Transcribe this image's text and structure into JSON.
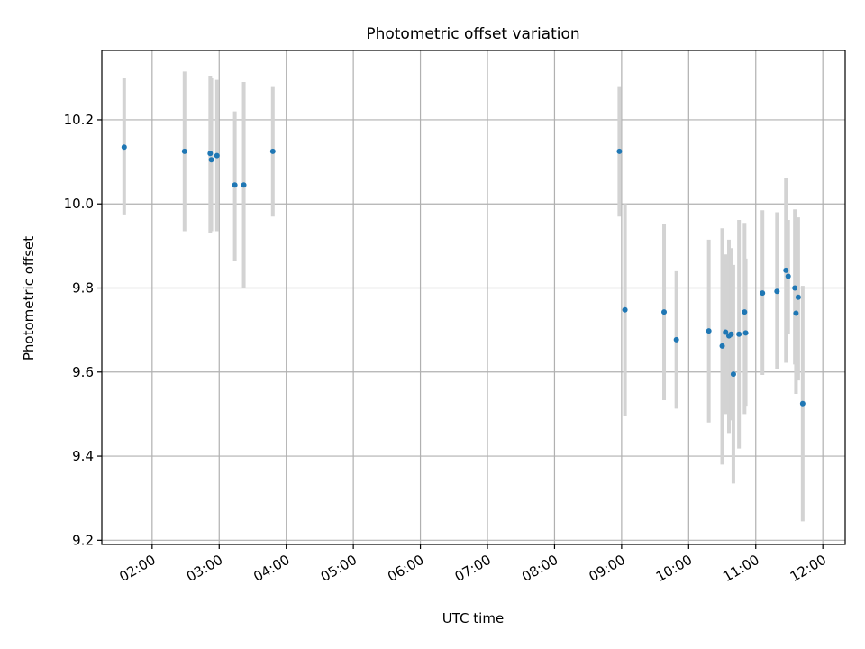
{
  "chart_data": {
    "type": "scatter",
    "title": "Photometric offset variation",
    "xlabel": "UTC time",
    "ylabel": "Photometric offset",
    "xlim": [
      "01:15",
      "12:20"
    ],
    "ylim": [
      9.19,
      10.365
    ],
    "grid": true,
    "x_ticks": [
      "02:00",
      "03:00",
      "04:00",
      "05:00",
      "06:00",
      "07:00",
      "08:00",
      "09:00",
      "10:00",
      "11:00",
      "12:00"
    ],
    "y_ticks": [
      9.2,
      9.4,
      9.6,
      9.8,
      10.0,
      10.2
    ],
    "y_tick_labels": [
      "9.2",
      "9.4",
      "9.6",
      "9.8",
      "10.0",
      "10.2"
    ],
    "colors": {
      "points": "#1f77b4",
      "error_bars": "#d3d3d3",
      "grid": "#b0b0b0"
    },
    "series": [
      {
        "marker": "dot",
        "points": [
          {
            "x": "01:35",
            "y": 10.135,
            "low": 9.975,
            "high": 10.3
          },
          {
            "x": "02:29",
            "y": 10.125,
            "low": 9.935,
            "high": 10.315
          },
          {
            "x": "02:52",
            "y": 10.12,
            "low": 9.93,
            "high": 10.305
          },
          {
            "x": "02:53",
            "y": 10.105,
            "low": 9.935,
            "high": 10.3
          },
          {
            "x": "02:58",
            "y": 10.115,
            "low": 9.935,
            "high": 10.295
          },
          {
            "x": "03:14",
            "y": 10.045,
            "low": 9.865,
            "high": 10.22
          },
          {
            "x": "03:22",
            "y": 10.045,
            "low": 9.8,
            "high": 10.29
          },
          {
            "x": "03:48",
            "y": 10.125,
            "low": 9.97,
            "high": 10.28
          },
          {
            "x": "08:58",
            "y": 10.125,
            "low": 9.97,
            "high": 10.28
          },
          {
            "x": "09:03",
            "y": 9.748,
            "low": 9.495,
            "high": 10.0
          },
          {
            "x": "09:38",
            "y": 9.743,
            "low": 9.533,
            "high": 9.953
          },
          {
            "x": "09:49",
            "y": 9.677,
            "low": 9.513,
            "high": 9.84
          },
          {
            "x": "10:18",
            "y": 9.698,
            "low": 9.48,
            "high": 9.915
          },
          {
            "x": "10:30",
            "y": 9.662,
            "low": 9.38,
            "high": 9.942
          },
          {
            "x": "10:33",
            "y": 9.695,
            "low": 9.5,
            "high": 9.88
          },
          {
            "x": "10:36",
            "y": 9.686,
            "low": 9.455,
            "high": 9.915
          },
          {
            "x": "10:38",
            "y": 9.69,
            "low": 9.485,
            "high": 9.895
          },
          {
            "x": "10:40",
            "y": 9.595,
            "low": 9.335,
            "high": 9.855
          },
          {
            "x": "10:45",
            "y": 9.69,
            "low": 9.418,
            "high": 9.962
          },
          {
            "x": "10:50",
            "y": 9.743,
            "low": 9.5,
            "high": 9.955
          },
          {
            "x": "10:51",
            "y": 9.693,
            "low": 9.52,
            "high": 9.87
          },
          {
            "x": "11:06",
            "y": 9.788,
            "low": 9.593,
            "high": 9.985
          },
          {
            "x": "11:19",
            "y": 9.792,
            "low": 9.608,
            "high": 9.98
          },
          {
            "x": "11:27",
            "y": 9.842,
            "low": 9.622,
            "high": 10.062
          },
          {
            "x": "11:29",
            "y": 9.828,
            "low": 9.69,
            "high": 9.962
          },
          {
            "x": "11:35",
            "y": 9.8,
            "low": 9.618,
            "high": 9.987
          },
          {
            "x": "11:36",
            "y": 9.74,
            "low": 9.548,
            "high": 9.96
          },
          {
            "x": "11:38",
            "y": 9.778,
            "low": 9.58,
            "high": 9.968
          },
          {
            "x": "11:42",
            "y": 9.525,
            "low": 9.245,
            "high": 9.805
          }
        ]
      }
    ]
  }
}
